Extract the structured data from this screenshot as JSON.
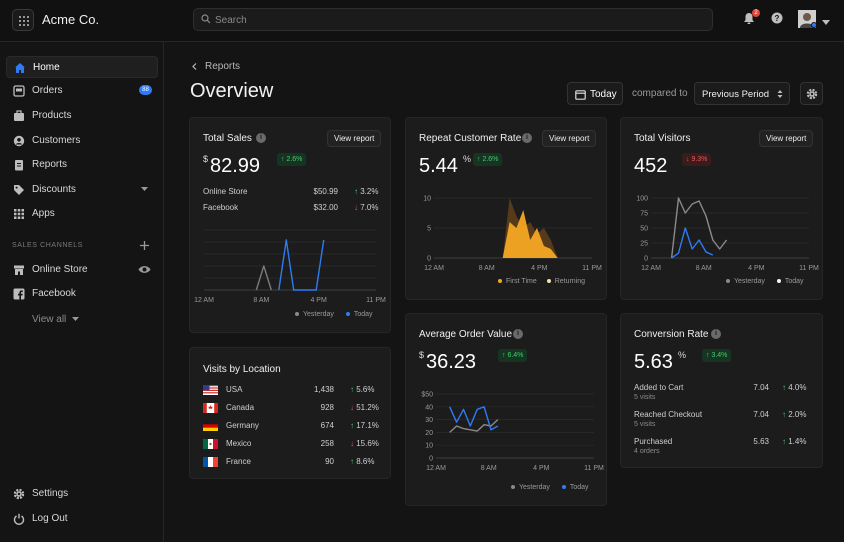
{
  "app": {
    "brand": "Acme Co.",
    "search_placeholder": "Search",
    "notification_count": "2"
  },
  "sidebar": {
    "items": [
      {
        "label": "Home",
        "icon": "home-icon",
        "active": true
      },
      {
        "label": "Orders",
        "icon": "orders-icon",
        "badge": "88"
      },
      {
        "label": "Products",
        "icon": "products-icon"
      },
      {
        "label": "Customers",
        "icon": "customers-icon"
      },
      {
        "label": "Reports",
        "icon": "reports-icon"
      },
      {
        "label": "Discounts",
        "icon": "discounts-icon"
      },
      {
        "label": "Apps",
        "icon": "apps-icon"
      }
    ],
    "section_label": "SALES CHANNELS",
    "channels": [
      {
        "label": "Online Store",
        "icon": "store-icon"
      },
      {
        "label": "Facebook",
        "icon": "facebook-icon"
      }
    ],
    "view_all": "View all",
    "footer": [
      {
        "label": "Settings",
        "icon": "gear-icon"
      },
      {
        "label": "Log Out",
        "icon": "power-icon"
      }
    ]
  },
  "header": {
    "breadcrumb": "Reports",
    "title": "Overview",
    "date_button": "Today",
    "compared_to": "compared to",
    "period_select": "Previous Period"
  },
  "view_report_label": "View report",
  "cards": {
    "total_sales": {
      "title": "Total Sales",
      "currency": "$",
      "value": "82.99",
      "delta": "↑ 2.6%",
      "rows": [
        {
          "label": "Online Store",
          "value": "$50.99",
          "pct": "3.2%",
          "dir": "up"
        },
        {
          "label": "Facebook",
          "value": "$32.00",
          "pct": "7.0%",
          "dir": "down"
        }
      ],
      "x_ticks": [
        "12 AM",
        "8 AM",
        "4 PM",
        "11 PM"
      ],
      "legend": [
        "Yesterday",
        "Today"
      ]
    },
    "repeat_rate": {
      "title": "Repeat Customer Rate",
      "value": "5.44",
      "suffix": "%",
      "delta": "↑ 2.6%",
      "y_ticks": [
        "10",
        "5",
        "0"
      ],
      "x_ticks": [
        "12 AM",
        "8 AM",
        "4 PM",
        "11 PM"
      ],
      "legend": [
        "First Time",
        "Returning"
      ]
    },
    "total_visitors": {
      "title": "Total Visitors",
      "value": "452",
      "delta": "↓ 9.3%",
      "y_ticks": [
        "100",
        "75",
        "50",
        "25",
        "0"
      ],
      "x_ticks": [
        "12 AM",
        "8 AM",
        "4 PM",
        "11 PM"
      ],
      "legend": [
        "Yesterday",
        "Today"
      ]
    },
    "visits_by_location": {
      "title": "Visits by Location",
      "rows": [
        {
          "country": "USA",
          "flag": "usa-flag-icon",
          "visits": "1,438",
          "pct": "5.6%",
          "dir": "up"
        },
        {
          "country": "Canada",
          "flag": "canada-flag-icon",
          "visits": "928",
          "pct": "51.2%",
          "dir": "down"
        },
        {
          "country": "Germany",
          "flag": "germany-flag-icon",
          "visits": "674",
          "pct": "17.1%",
          "dir": "up"
        },
        {
          "country": "Mexico",
          "flag": "mexico-flag-icon",
          "visits": "258",
          "pct": "15.6%",
          "dir": "down"
        },
        {
          "country": "France",
          "flag": "france-flag-icon",
          "visits": "90",
          "pct": "8.6%",
          "dir": "up"
        }
      ]
    },
    "avg_order_value": {
      "title": "Average Order Value",
      "currency": "$",
      "value": "36.23",
      "delta": "↑ 6.4%",
      "y_ticks": [
        "$50",
        "40",
        "30",
        "20",
        "10",
        "0"
      ],
      "x_ticks": [
        "12 AM",
        "8 AM",
        "4 PM",
        "11 PM"
      ],
      "legend": [
        "Yesterday",
        "Today"
      ]
    },
    "conversion_rate": {
      "title": "Conversion Rate",
      "value": "5.63",
      "suffix": "%",
      "delta": "↑ 3.4%",
      "rows": [
        {
          "label": "Added to Cart",
          "sub": "5 visits",
          "value": "7.04",
          "pct": "4.0%",
          "dir": "up"
        },
        {
          "label": "Reached Checkout",
          "sub": "5 visits",
          "value": "7.04",
          "pct": "2.0%",
          "dir": "up"
        },
        {
          "label": "Purchased",
          "sub": "4 orders",
          "value": "5.63",
          "pct": "1.4%",
          "dir": "up"
        }
      ]
    }
  },
  "chart_data": [
    {
      "type": "line",
      "title": "Total Sales",
      "x": [
        0,
        1,
        2,
        3,
        4,
        5,
        6,
        7,
        8,
        9,
        10,
        11,
        12,
        13,
        14,
        15,
        16,
        17,
        18,
        19,
        20,
        21,
        22,
        23
      ],
      "series": [
        {
          "name": "Yesterday",
          "color": "#7a7a7a",
          "points": [
            [
              7,
              0
            ],
            [
              8,
              24
            ],
            [
              9,
              0
            ]
          ]
        },
        {
          "name": "Today",
          "color": "#2f7bf5",
          "points": [
            [
              10,
              0
            ],
            [
              11,
              50
            ],
            [
              12,
              0
            ],
            [
              13,
              0
            ],
            [
              14,
              0
            ],
            [
              15,
              0
            ],
            [
              16,
              50
            ]
          ]
        }
      ],
      "ylim": [
        0,
        60
      ],
      "grid": true,
      "legend": "bottom"
    },
    {
      "type": "area",
      "title": "Repeat Customer Rate",
      "series": [
        {
          "name": "First Time",
          "color": "#f5a623",
          "points": [
            [
              10,
              0
            ],
            [
              11,
              6
            ],
            [
              12,
              5
            ],
            [
              13,
              8
            ],
            [
              14,
              3
            ],
            [
              15,
              5
            ],
            [
              16,
              2
            ],
            [
              17,
              1.5
            ],
            [
              18,
              0
            ]
          ]
        },
        {
          "name": "Returning",
          "color": "#5a3c1a",
          "points": [
            [
              10,
              0
            ],
            [
              11,
              10
            ],
            [
              12,
              7
            ],
            [
              13,
              5
            ],
            [
              14,
              6
            ],
            [
              15,
              4
            ],
            [
              16,
              5
            ],
            [
              17,
              3
            ],
            [
              18,
              0
            ]
          ]
        }
      ],
      "ylim": [
        0,
        10
      ],
      "grid": true,
      "legend": "bottom"
    },
    {
      "type": "line",
      "title": "Total Visitors",
      "series": [
        {
          "name": "Yesterday",
          "color": "#8a8a8a",
          "points": [
            [
              3,
              0
            ],
            [
              4,
              100
            ],
            [
              5,
              75
            ],
            [
              6,
              90
            ],
            [
              7,
              95
            ],
            [
              8,
              70
            ],
            [
              9,
              30
            ],
            [
              10,
              15
            ],
            [
              11,
              30
            ]
          ]
        },
        {
          "name": "Today",
          "color": "#2f7bf5",
          "points": [
            [
              3,
              0
            ],
            [
              4,
              8
            ],
            [
              5,
              50
            ],
            [
              6,
              15
            ],
            [
              7,
              30
            ],
            [
              8,
              10
            ],
            [
              9,
              5
            ]
          ]
        }
      ],
      "ylim": [
        0,
        100
      ],
      "grid": true,
      "legend": "bottom"
    },
    {
      "type": "line",
      "title": "Average Order Value",
      "series": [
        {
          "name": "Yesterday",
          "color": "#8a8a8a",
          "points": [
            [
              2,
              20
            ],
            [
              3,
              25
            ],
            [
              4,
              23
            ],
            [
              5,
              22
            ],
            [
              6,
              21
            ],
            [
              7,
              26
            ],
            [
              8,
              25
            ],
            [
              9,
              30
            ]
          ]
        },
        {
          "name": "Today",
          "color": "#2f7bf5",
          "points": [
            [
              2,
              40
            ],
            [
              3,
              28
            ],
            [
              4,
              38
            ],
            [
              5,
              25
            ],
            [
              6,
              38
            ],
            [
              7,
              40
            ],
            [
              8,
              22
            ],
            [
              9,
              25
            ]
          ]
        }
      ],
      "ylim": [
        0,
        50
      ],
      "grid": true,
      "legend": "bottom"
    }
  ]
}
